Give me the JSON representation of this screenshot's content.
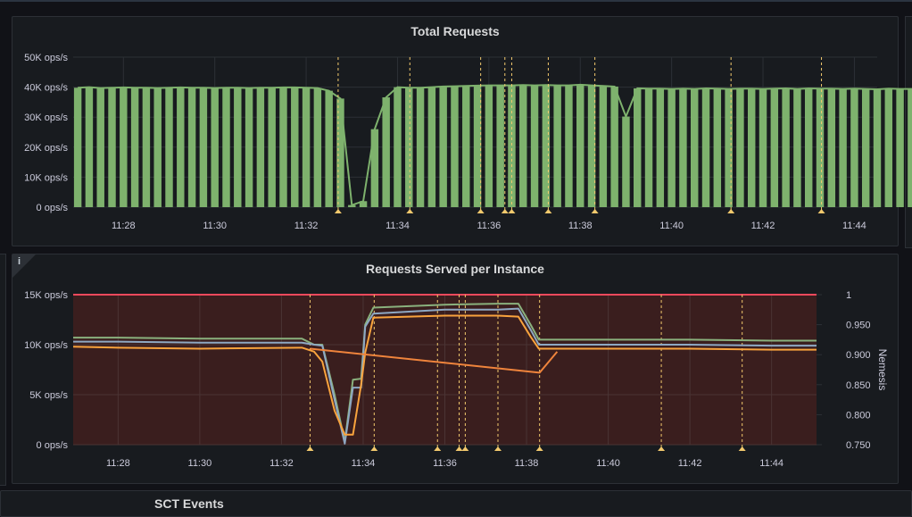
{
  "panels": [
    {
      "title": "Total Requests"
    },
    {
      "title": "Requests Served per Instance",
      "info_icon": "info-icon"
    },
    {
      "title": "SCT Events"
    }
  ],
  "colors": {
    "background": "#111217",
    "panel": "#181b1f",
    "bars": "#7eb26d",
    "bar_line": "#7eb26d",
    "annotation": "#f2c96d",
    "threshold": "#f2495c",
    "threshold_fill": "#3a1e1e",
    "series_green": "#8ab17d",
    "series_blue": "#8ea8c3",
    "series_orange": "#f9a33d",
    "nemesis": "#ef843c"
  },
  "chart_data": [
    {
      "type": "bar",
      "title": "Total Requests",
      "x_ticks": [
        "11:28",
        "11:30",
        "11:32",
        "11:34",
        "11:36",
        "11:38",
        "11:40",
        "11:42",
        "11:44"
      ],
      "y_ticks": [
        "0 ops/s",
        "10K ops/s",
        "20K ops/s",
        "30K ops/s",
        "40K ops/s",
        "50K ops/s"
      ],
      "ylim": [
        0,
        50000
      ],
      "xlim_minutes": [
        26.9,
        44.5
      ],
      "bar_interval_seconds": 15,
      "series": [
        {
          "x_start_minute": 27.0,
          "values": [
            39800,
            40000,
            39700,
            39800,
            39900,
            39800,
            39800,
            39700,
            39800,
            39900,
            39800,
            39800,
            39700,
            39800,
            39800,
            39700,
            39800,
            39800,
            39900,
            39900,
            39800,
            39700,
            38800,
            36200,
            700,
            2000,
            26000,
            36600,
            40000,
            39800,
            39800,
            40000,
            40200,
            40300,
            40400,
            40500,
            40600,
            40600,
            40600,
            40700,
            40600,
            40700,
            40600,
            40600,
            40800,
            40600,
            40400,
            40200,
            30200,
            39600,
            39500,
            39500,
            39400,
            39500,
            39400,
            39600,
            39500,
            39400,
            39500,
            39500,
            39400,
            39500,
            39600,
            39400,
            39600,
            39500,
            39500,
            39400,
            39500,
            39400,
            39300,
            39500,
            39400,
            39400,
            39300,
            39400,
            39400,
            39500,
            39400,
            39400
          ]
        }
      ],
      "annotations_minutes": [
        32.7,
        34.27,
        35.82,
        36.35,
        36.5,
        37.3,
        38.32,
        41.3,
        43.28
      ]
    },
    {
      "type": "line",
      "title": "Requests Served per Instance",
      "x_ticks": [
        "11:28",
        "11:30",
        "11:32",
        "11:34",
        "11:36",
        "11:38",
        "11:40",
        "11:42",
        "11:44"
      ],
      "y_ticks": [
        "0 ops/s",
        "5K ops/s",
        "10K ops/s",
        "15K ops/s"
      ],
      "ylim": [
        0,
        15000
      ],
      "y2_ticks": [
        "0.750",
        "0.800",
        "0.850",
        "0.900",
        "0.950",
        "1"
      ],
      "y2lim": [
        0.75,
        1.0
      ],
      "y2label": "Nemesis",
      "threshold": 15000,
      "xlim_minutes": [
        26.9,
        45.1
      ],
      "series": [
        {
          "x_minutes": [
            26.9,
            28,
            30,
            32.5,
            32.8,
            33.0,
            33.3,
            33.55,
            33.75,
            33.95,
            34.05,
            34.25,
            36,
            37.3,
            37.8,
            38.1,
            38.3,
            40,
            42,
            44,
            45.1
          ],
          "values": [
            10700,
            10700,
            10600,
            10600,
            10000,
            10000,
            5000,
            300,
            6500,
            6600,
            12000,
            13700,
            14000,
            14100,
            14100,
            12000,
            10500,
            10500,
            10500,
            10400,
            10400
          ]
        },
        {
          "x_minutes": [
            26.9,
            28,
            30,
            32.5,
            32.8,
            33.0,
            33.3,
            33.55,
            33.75,
            33.95,
            34.05,
            34.25,
            36,
            37.3,
            37.8,
            38.1,
            38.3,
            40,
            42,
            44,
            45.1
          ],
          "values": [
            10300,
            10300,
            10200,
            10200,
            10000,
            9900,
            4500,
            100,
            5700,
            5700,
            11800,
            13100,
            13500,
            13500,
            13600,
            11500,
            10000,
            10000,
            10000,
            9900,
            9900
          ]
        },
        {
          "x_minutes": [
            26.9,
            28,
            30,
            32.5,
            32.8,
            33.0,
            33.3,
            33.55,
            33.75,
            33.95,
            34.05,
            34.25,
            36,
            37.3,
            37.8,
            38.1,
            38.3,
            40,
            42,
            44,
            45.1
          ],
          "values": [
            9800,
            9700,
            9600,
            9700,
            9300,
            8300,
            3400,
            1000,
            1000,
            6000,
            9200,
            12700,
            12900,
            12900,
            12800,
            10800,
            9600,
            9600,
            9600,
            9500,
            9500
          ]
        },
        {
          "axis": "y2",
          "x_minutes": [
            32.7,
            38.32,
            38.75
          ],
          "values": [
            0.91,
            0.87,
            0.905
          ]
        }
      ],
      "annotations_minutes": [
        32.7,
        34.27,
        35.82,
        36.35,
        36.5,
        37.3,
        38.32,
        41.3,
        43.28
      ]
    }
  ]
}
